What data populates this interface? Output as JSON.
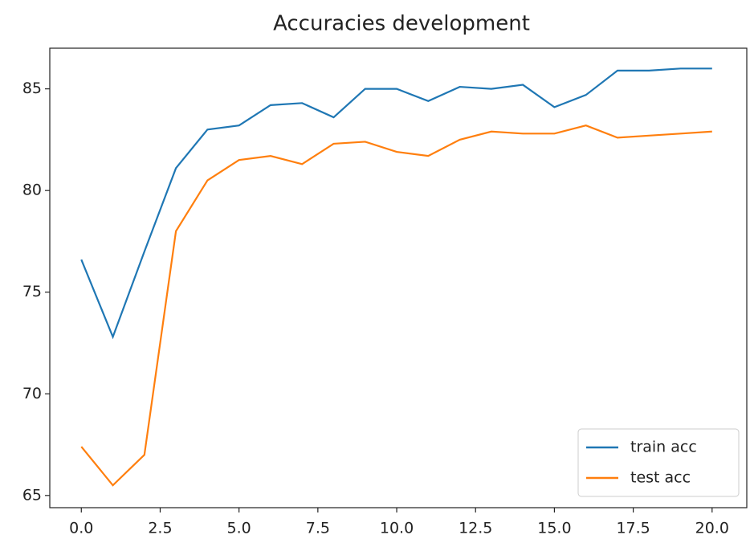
{
  "chart_data": {
    "type": "line",
    "title": "Accuracies development",
    "x": [
      0,
      1,
      2,
      3,
      4,
      5,
      6,
      7,
      8,
      9,
      10,
      11,
      12,
      13,
      14,
      15,
      16,
      17,
      18,
      19,
      20
    ],
    "series": [
      {
        "name": "train acc",
        "color": "#1f77b4",
        "values": [
          76.6,
          72.8,
          77.0,
          81.1,
          83.0,
          83.2,
          84.2,
          84.3,
          83.6,
          85.0,
          85.0,
          84.4,
          85.1,
          85.0,
          85.2,
          84.1,
          84.7,
          85.9,
          85.9,
          86.0,
          86.0
        ]
      },
      {
        "name": "test acc",
        "color": "#ff7f0e",
        "values": [
          67.4,
          65.5,
          67.0,
          78.0,
          80.5,
          81.5,
          81.7,
          81.3,
          82.3,
          82.4,
          81.9,
          81.7,
          82.5,
          82.9,
          82.8,
          82.8,
          83.2,
          82.6,
          82.7,
          82.8,
          82.9
        ]
      }
    ],
    "xlim": [
      -1,
      21.1
    ],
    "ylim": [
      64.4,
      87.0
    ],
    "xticks": [
      {
        "value": 0,
        "label": "0.0"
      },
      2.5,
      {
        "value": 5,
        "label": "5.0"
      },
      7.5,
      {
        "value": 10,
        "label": "10.0"
      },
      12.5,
      {
        "value": 15,
        "label": "15.0"
      },
      17.5,
      {
        "value": 20,
        "label": "20.0"
      }
    ],
    "yticks": [
      65,
      70,
      75,
      80,
      85
    ],
    "legend": "lower right",
    "grid": false
  }
}
